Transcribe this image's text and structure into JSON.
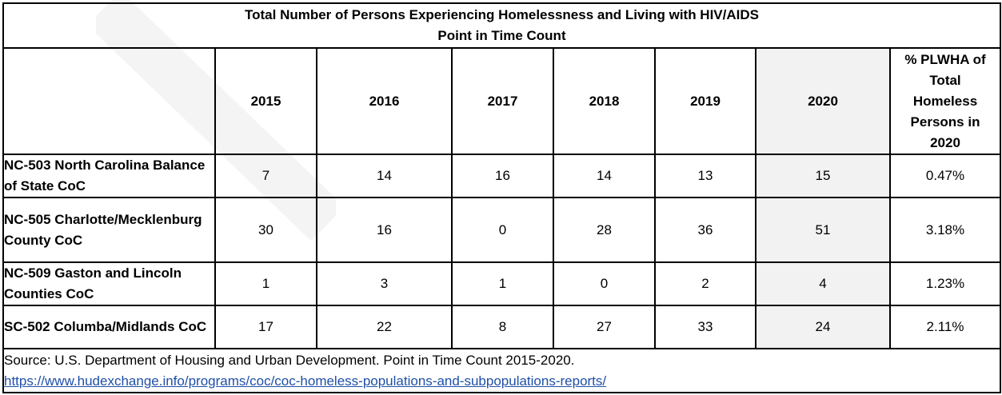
{
  "table": {
    "title": "Total Number of Persons Experiencing Homelessness and Living with HIV/AIDS",
    "subtitle": "Point in Time Count",
    "headers": [
      "",
      "2015",
      "2016",
      "2017",
      "2018",
      "2019",
      "2020",
      "% PLWHA of Total Homeless Persons in 2020"
    ],
    "rows": [
      {
        "name": "NC-503 North Carolina Balance of State CoC",
        "values": [
          "7",
          "14",
          "16",
          "14",
          "13",
          "15",
          "0.47%"
        ]
      },
      {
        "name": "NC-505 Charlotte/Mecklenburg County CoC",
        "values": [
          "30",
          "16",
          "0",
          "28",
          "36",
          "51",
          "3.18%"
        ]
      },
      {
        "name": "NC-509 Gaston and Lincoln Counties CoC",
        "values": [
          "1",
          "3",
          "1",
          "0",
          "2",
          "4",
          "1.23%"
        ]
      },
      {
        "name": "SC-502 Columba/Midlands CoC",
        "values": [
          "17",
          "22",
          "8",
          "27",
          "33",
          "24",
          "2.11%"
        ]
      }
    ],
    "source": "Source: U.S. Department of Housing and Urban Development. Point in Time Count 2015-2020.",
    "source_url": "https://www.hudexchange.info/programs/coc/coc-homeless-populations-and-subpopulations-reports/",
    "colors": {
      "shaded_column": "#f2f2f2",
      "link": "#1f4fa8"
    }
  }
}
